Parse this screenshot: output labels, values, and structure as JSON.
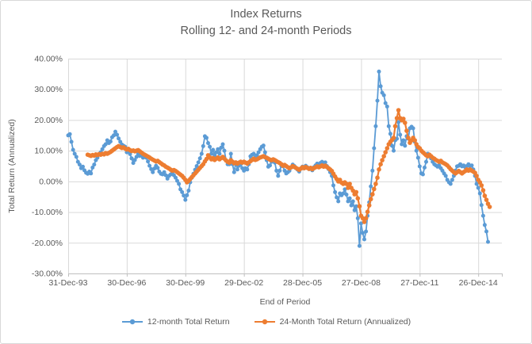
{
  "chart": {
    "title_line1": "Index Returns",
    "title_line2": "Rolling 12- and 24-month Periods"
  },
  "chart_data": {
    "type": "line",
    "title": "Index Returns — Rolling 12- and 24-month Periods",
    "xlabel": "End of Period",
    "ylabel": "Total Return (Annualized)",
    "grid": true,
    "legend_position": "bottom",
    "y_min": -30,
    "y_max": 40,
    "y_ticks": [
      40,
      30,
      20,
      10,
      0,
      -10,
      -20,
      -30
    ],
    "y_tick_labels": [
      "40.00%",
      "30.00%",
      "20.00%",
      "10.00%",
      "0.00%",
      "-10.00%",
      "-20.00%",
      "-30.00%"
    ],
    "x_tick_labels": [
      "31-Dec-93",
      "30-Dec-96",
      "30-Dec-99",
      "29-Dec-02",
      "28-Dec-05",
      "27-Dec-08",
      "27-Dec-11",
      "26-Dec-14"
    ],
    "x_tick_interval_years": 3,
    "series": [
      {
        "name": "12-month Total Return",
        "color": "#5B9BD5",
        "interval": "monthly",
        "unit": "percent",
        "start_period": "Dec-1993",
        "start_month_offset": 0,
        "values": [
          15.0,
          15.4,
          12.9,
          10.3,
          9.0,
          8.0,
          6.4,
          5.5,
          4.3,
          4.8,
          3.6,
          2.8,
          2.5,
          3.2,
          2.6,
          4.5,
          5.5,
          6.9,
          7.7,
          8.7,
          9.5,
          10.5,
          11.5,
          12.1,
          13.4,
          12.5,
          13.0,
          14.4,
          15.0,
          16.2,
          15.2,
          14.0,
          12.9,
          12.0,
          11.6,
          11.3,
          9.5,
          9.8,
          8.9,
          7.5,
          6.0,
          7.0,
          8.0,
          9.0,
          8.3,
          8.8,
          7.7,
          8.2,
          7.7,
          6.5,
          5.1,
          4.0,
          3.0,
          4.2,
          5.1,
          4.4,
          3.2,
          2.5,
          2.3,
          3.0,
          2.0,
          0.9,
          1.8,
          2.3,
          2.8,
          2.0,
          1.2,
          0.2,
          -0.8,
          -2.6,
          -3.5,
          -4.6,
          -6.0,
          -4.5,
          -3.0,
          -0.3,
          1.2,
          2.5,
          3.8,
          5.0,
          6.2,
          7.5,
          9.0,
          11.5,
          14.7,
          14.2,
          12.5,
          11.3,
          9.0,
          10.3,
          8.5,
          9.5,
          10.5,
          9.0,
          11.0,
          12.1,
          10.0,
          6.9,
          5.6,
          5.6,
          9.0,
          5.6,
          3.0,
          6.2,
          3.9,
          5.1,
          5.6,
          4.3,
          3.5,
          4.3,
          3.9,
          5.6,
          8.2,
          8.7,
          9.0,
          7.5,
          8.5,
          9.5,
          10.5,
          11.3,
          11.7,
          9.5,
          6.9,
          4.8,
          5.2,
          6.4,
          6.9,
          6.1,
          3.5,
          1.8,
          3.5,
          5.1,
          4.9,
          3.5,
          2.6,
          3.0,
          3.5,
          4.5,
          5.5,
          5.0,
          4.3,
          3.8,
          3.2,
          4.2,
          4.8,
          4.3,
          5.1,
          4.6,
          4.0,
          4.4,
          3.6,
          4.6,
          5.2,
          5.8,
          5.3,
          6.0,
          6.4,
          5.5,
          6.2,
          5.0,
          4.0,
          3.0,
          1.8,
          -1.3,
          -3.5,
          -5.2,
          -6.5,
          -3.9,
          -4.5,
          -3.9,
          -2.6,
          -4.3,
          -6.5,
          -5.5,
          -7.8,
          -6.5,
          -9.4,
          -8.1,
          -12.0,
          -21.0,
          -13.7,
          -16.8,
          -18.9,
          -16.3,
          -11.2,
          -6.8,
          -1.6,
          3.5,
          10.8,
          18.0,
          26.3,
          35.8,
          31.0,
          28.9,
          28.1,
          25.5,
          24.4,
          18.0,
          15.5,
          11.6,
          10.0,
          13.4,
          13.9,
          19.3,
          15.2,
          12.1,
          13.4,
          11.6,
          14.7,
          13.9,
          17.3,
          17.8,
          17.3,
          12.9,
          10.0,
          7.7,
          4.9,
          2.6,
          2.3,
          4.5,
          6.4,
          9.0,
          8.7,
          7.5,
          6.4,
          5.6,
          5.2,
          4.8,
          5.2,
          4.3,
          3.5,
          2.6,
          1.8,
          0.5,
          -0.3,
          -0.8,
          0.5,
          1.8,
          3.5,
          4.9,
          5.1,
          5.6,
          4.9,
          5.2,
          4.6,
          5.0,
          5.6,
          4.9,
          5.2,
          3.9,
          1.8,
          -0.8,
          -2.1,
          -3.9,
          -7.7,
          -11.2,
          -14.2,
          -16.3,
          -19.7
        ]
      },
      {
        "name": "24-Month Total Return (Annualized)",
        "color": "#ED7D31",
        "interval": "monthly",
        "unit": "percent",
        "start_period": "Dec-1994",
        "start_month_offset": 12,
        "values": [
          8.7,
          8.5,
          8.3,
          8.6,
          8.4,
          8.8,
          8.6,
          8.9,
          8.7,
          9.0,
          8.8,
          9.2,
          9.0,
          9.3,
          9.6,
          10.0,
          10.4,
          10.8,
          11.2,
          11.5,
          11.2,
          10.9,
          11.1,
          10.7,
          10.4,
          10.6,
          10.2,
          9.9,
          10.1,
          9.8,
          10.0,
          10.2,
          9.8,
          9.4,
          9.0,
          8.7,
          8.4,
          8.1,
          7.8,
          7.4,
          7.1,
          6.8,
          6.5,
          6.7,
          6.3,
          5.9,
          5.5,
          5.2,
          4.8,
          4.5,
          4.2,
          3.8,
          3.5,
          3.7,
          3.4,
          3.0,
          2.6,
          2.2,
          1.8,
          1.2,
          0.5,
          -0.3,
          0.2,
          0.8,
          1.4,
          2.0,
          2.6,
          3.2,
          3.8,
          4.4,
          5.0,
          5.6,
          6.5,
          7.3,
          8.5,
          7.8,
          7.2,
          7.6,
          7.0,
          7.4,
          7.8,
          7.2,
          7.6,
          8.0,
          7.4,
          6.8,
          6.4,
          6.1,
          6.9,
          6.4,
          5.9,
          6.2,
          5.8,
          6.1,
          6.4,
          6.1,
          6.4,
          6.1,
          5.8,
          6.2,
          6.6,
          7.0,
          7.4,
          7.0,
          7.2,
          7.5,
          7.8,
          8.0,
          8.2,
          7.9,
          7.7,
          7.4,
          7.1,
          6.9,
          7.2,
          6.9,
          6.6,
          6.3,
          6.0,
          5.6,
          5.1,
          5.4,
          5.0,
          4.6,
          4.3,
          4.6,
          5.0,
          4.7,
          4.4,
          4.1,
          3.8,
          4.2,
          4.6,
          4.3,
          4.7,
          4.4,
          4.1,
          4.4,
          4.0,
          4.3,
          4.6,
          4.9,
          4.6,
          4.9,
          5.2,
          4.8,
          5.1,
          4.7,
          4.3,
          3.9,
          3.4,
          2.5,
          1.6,
          0.8,
          0.0,
          0.5,
          -0.4,
          -0.8,
          -0.3,
          -0.8,
          -2.1,
          -0.8,
          -2.1,
          -3.0,
          -4.2,
          -3.5,
          -5.5,
          -8.1,
          -11.2,
          -12.0,
          -13.2,
          -12.0,
          -9.9,
          -7.8,
          -5.8,
          -4.2,
          -2.5,
          -0.8,
          1.2,
          3.9,
          5.6,
          6.9,
          8.2,
          9.5,
          10.8,
          12.1,
          12.9,
          13.5,
          14.2,
          18.0,
          20.6,
          23.2,
          20.6,
          19.9,
          20.4,
          19.1,
          16.5,
          14.2,
          12.6,
          13.4,
          14.2,
          13.4,
          12.1,
          11.2,
          10.8,
          10.0,
          9.5,
          9.0,
          8.5,
          8.2,
          8.7,
          8.2,
          7.7,
          7.4,
          7.0,
          6.7,
          6.4,
          6.7,
          6.2,
          5.9,
          5.6,
          5.2,
          4.6,
          4.0,
          3.5,
          3.0,
          2.6,
          3.0,
          3.4,
          3.0,
          2.6,
          3.0,
          3.4,
          3.9,
          3.5,
          3.9,
          3.5,
          3.2,
          2.8,
          1.8,
          0.5,
          -0.3,
          -1.3,
          -2.9,
          -4.7,
          -6.0,
          -7.3,
          -8.3
        ]
      }
    ],
    "colors": {
      "text": "#595959",
      "gridline": "#d9d9d9",
      "axis_line": "#bfbfbf",
      "frame_border": "#d9d9d9"
    }
  }
}
